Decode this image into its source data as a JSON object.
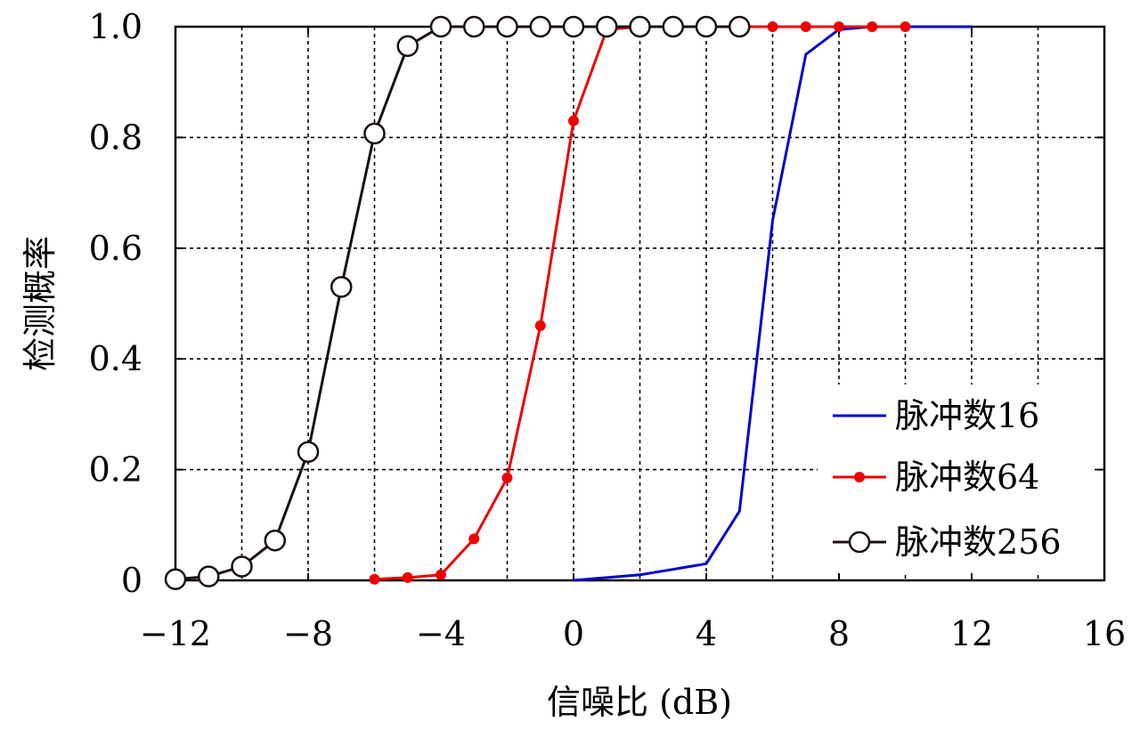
{
  "chart_data": {
    "type": "line",
    "xlabel": "信噪比 (dB)",
    "ylabel": "检测概率",
    "xlim": [
      -12,
      16
    ],
    "ylim": [
      0,
      1.0
    ],
    "x_ticks": [
      -12,
      -8,
      -4,
      0,
      4,
      8,
      12,
      16
    ],
    "x_tick_labels": [
      "−12",
      "−8",
      "−4",
      "0",
      "4",
      "8",
      "12",
      "16"
    ],
    "y_ticks": [
      0,
      0.2,
      0.4,
      0.6,
      0.8,
      1.0
    ],
    "y_tick_labels": [
      "0",
      "0.2",
      "0.4",
      "0.6",
      "0.8",
      "1.0"
    ],
    "grid": true,
    "legend_position": "bottom-right",
    "series": [
      {
        "name": "脉冲数16",
        "color": "#0000cc",
        "marker": "none",
        "x": [
          0,
          1,
          2,
          3,
          4,
          5,
          6,
          7,
          8,
          9,
          10,
          11,
          12
        ],
        "y": [
          0.0,
          0.005,
          0.01,
          0.02,
          0.03,
          0.125,
          0.65,
          0.95,
          0.995,
          1.0,
          1.0,
          1.0,
          1.0
        ]
      },
      {
        "name": "脉冲数64",
        "color": "#ee0000",
        "marker": "filled-circle",
        "x": [
          -6,
          -5,
          -4,
          -3,
          -2,
          -1,
          0,
          1,
          2,
          3,
          4,
          5,
          6,
          7,
          8,
          9,
          10
        ],
        "y": [
          0.002,
          0.005,
          0.01,
          0.075,
          0.185,
          0.46,
          0.83,
          0.995,
          1.0,
          1.0,
          1.0,
          1.0,
          1.0,
          1.0,
          1.0,
          1.0,
          1.0
        ]
      },
      {
        "name": "脉冲数256",
        "color": "#1a1010",
        "marker": "open-circle",
        "x": [
          -12,
          -11,
          -10,
          -9,
          -8,
          -7,
          -6,
          -5,
          -4,
          -3,
          -2,
          -1,
          0,
          1,
          2,
          3,
          4,
          5
        ],
        "y": [
          0.002,
          0.007,
          0.025,
          0.072,
          0.232,
          0.53,
          0.807,
          0.965,
          1.0,
          1.0,
          1.0,
          1.0,
          1.0,
          1.0,
          1.0,
          1.0,
          1.0,
          1.0
        ]
      }
    ]
  }
}
